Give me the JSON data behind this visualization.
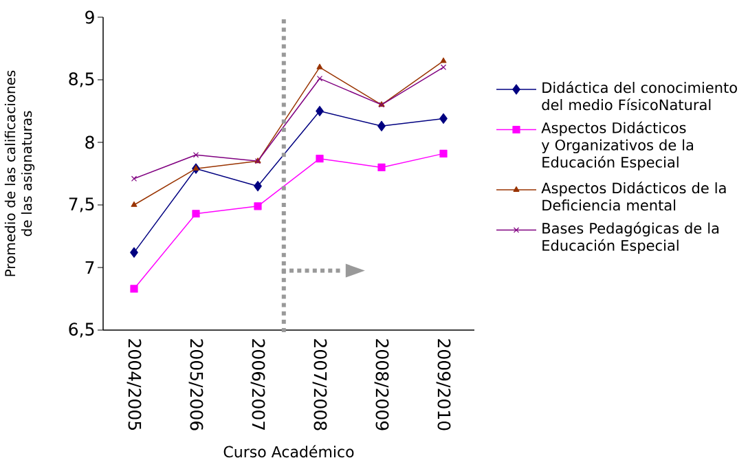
{
  "chart_data": {
    "type": "line",
    "xlabel": "Curso Académico",
    "ylabel": "Promedio de las calificaciones de las asignaturas",
    "categories": [
      "2004/2005",
      "2005/2006",
      "2006/2007",
      "2007/2008",
      "2008/2009",
      "2009/2010"
    ],
    "ylim": [
      6.5,
      9
    ],
    "yticks": [
      {
        "value": 6.5,
        "label": "6,5"
      },
      7,
      {
        "value": 7.5,
        "label": "7,5"
      },
      8,
      {
        "value": 8.5,
        "label": "8,5"
      },
      9
    ],
    "grid": false,
    "legend": "right",
    "line_style": "solid",
    "series": [
      {
        "name": "Didáctica del conocimiento del medio FísicoNatural",
        "color": "#000080",
        "marker": "diamond",
        "values": [
          7.12,
          7.79,
          7.65,
          8.25,
          8.13,
          8.19
        ]
      },
      {
        "name": "Aspectos Didácticos y Organizativos de la Educación Especial",
        "color": "#ff00ff",
        "marker": "square",
        "values": [
          6.83,
          7.43,
          7.49,
          7.87,
          7.8,
          7.91
        ]
      },
      {
        "name": "Aspectos Didácticos de la Deficiencia mental",
        "color": "#993300",
        "marker": "triangle",
        "values": [
          7.5,
          7.79,
          7.85,
          8.6,
          8.3,
          8.65
        ]
      },
      {
        "name": "Bases Pedagógicas de la Educación Especial",
        "color": "#800080",
        "marker": "cross",
        "values": [
          7.71,
          7.9,
          7.85,
          8.51,
          8.3,
          8.6
        ]
      }
    ]
  }
}
